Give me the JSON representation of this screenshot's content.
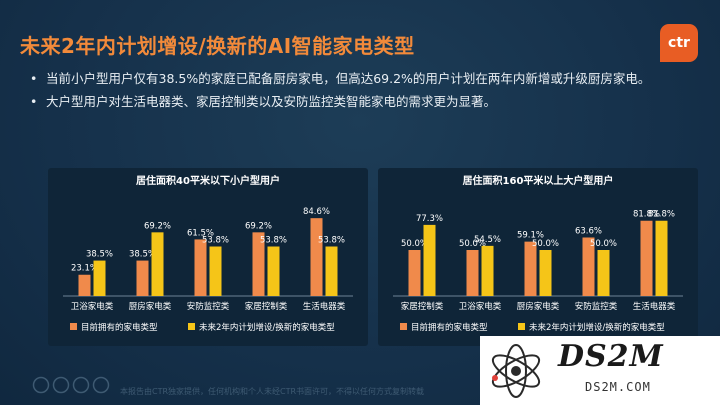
{
  "title": "未来2年内计划增设/换新的AI智能家电类型",
  "logo_text": "ctr",
  "bullets": [
    "当前小户型用户仅有38.5%的家庭已配备厨房家电，但高达69.2%的用户计划在两年内新增或升级厨房家电。",
    "大户型用户对生活电器类、家居控制类以及安防监控类智能家电的需求更为显著。"
  ],
  "watermark": {
    "main": "DS2M",
    "sub": "DS2M.COM"
  },
  "footnote": "本报告由CTR独家提供，任何机构和个人未经CTR书面许可，不得以任何方式复制转载",
  "colors": {
    "current": "#f08a4b",
    "future": "#f5c518",
    "background": "#16324a",
    "title": "#f28a3a"
  },
  "chart_data": [
    {
      "type": "bar",
      "title": "居住面积40平米以下小户型用户",
      "categories": [
        "卫浴家电类",
        "厨房家电类",
        "安防监控类",
        "家居控制类",
        "生活电器类"
      ],
      "series": [
        {
          "name": "目前拥有的家电类型",
          "values": [
            23.1,
            38.5,
            61.5,
            69.2,
            84.6
          ],
          "labels": [
            "23.1%",
            "38.5%",
            "61.5%",
            "69.2%",
            "84.6%"
          ]
        },
        {
          "name": "未来2年内计划增设/换新的家电类型",
          "values": [
            38.5,
            69.2,
            53.8,
            53.8,
            53.8
          ],
          "labels": [
            "38.5%",
            "69.2%",
            "53.8%",
            "53.8%",
            "53.8%"
          ]
        }
      ],
      "ylim": [
        0,
        100
      ],
      "legend_position": "bottom"
    },
    {
      "type": "bar",
      "title": "居住面积160平米以上大户型用户",
      "categories": [
        "家居控制类",
        "卫浴家电类",
        "厨房家电类",
        "安防监控类",
        "生活电器类"
      ],
      "series": [
        {
          "name": "目前拥有的家电类型",
          "values": [
            50.0,
            50.0,
            59.1,
            63.6,
            81.8
          ],
          "labels": [
            "50.0%",
            "50.0%",
            "59.1%",
            "63.6%",
            "81.8%"
          ]
        },
        {
          "name": "未来2年内计划增设/换新的家电类型",
          "values": [
            77.3,
            54.5,
            50.0,
            50.0,
            81.8
          ],
          "labels": [
            "77.3%",
            "54.5%",
            "50.0%",
            "50.0%",
            "81.8%"
          ]
        }
      ],
      "ylim": [
        0,
        100
      ],
      "legend_position": "bottom"
    }
  ]
}
